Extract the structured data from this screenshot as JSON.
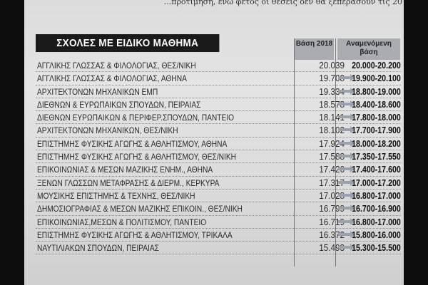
{
  "top_text": "...προτίμηση, ενώ φέτος οι θέσεις δεν θα ξεπεράσουν τις 20",
  "table": {
    "title": "ΣΧΟΛΕΣ ΜΕ ΕΙΔΙΚΟ ΜΑΘΗΜΑ",
    "col_base": "Βάση 2018",
    "col_expected": "Αναμενόμενη βάση",
    "arrow_icon": "arrow-right-icon",
    "rows": [
      {
        "name": "ΑΓΓΛΙΚΗΣ ΓΛΩΣΣΑΣ & ΦΙΛΟΛΟΓΙΑΣ, ΘΕΣ/ΝΙΚΗ",
        "base": "20.039",
        "expected": "20.000-20.200",
        "arrow": false
      },
      {
        "name": "ΑΓΓΛΙΚΗΣ ΓΛΩΣΣΑΣ & ΦΙΛΟΛΟΓΙΑΣ, ΑΘΗΝΑ",
        "base": "19.708",
        "expected": "19.900-20.100",
        "arrow": true
      },
      {
        "name": "ΑΡΧΙΤΕΚΤΟΝΩΝ ΜΗΧΑΝΙΚΩΝ ΕΜΠ",
        "base": "19.334",
        "expected": "18.800-19.000",
        "arrow": true
      },
      {
        "name": "ΔΙΕΘΝΩΝ & ΕΥΡΩΠΑΙΚΩΝ ΣΠΟΥΔΩΝ, ΠΕΙΡΑΙΑΣ",
        "base": "18.578",
        "expected": "18.400-18.600",
        "arrow": true
      },
      {
        "name": "ΔΙΕΘΝΩΝ ΕΥΡΩΠΑΙΚΩΝ & ΠΕΡΙΦΕΡ.ΣΠΟΥΔΩΝ, ΠΑΝΤΕΙΟ",
        "base": "18.141",
        "expected": "17.800-18.000",
        "arrow": true
      },
      {
        "name": "ΑΡΧΙΤΕΚΤΟΝΩΝ ΜΗΧΑΝΙΚΩΝ, ΘΕΣ/ΝΙΚΗ",
        "base": "18.102",
        "expected": "17.700-17.900",
        "arrow": true
      },
      {
        "name": "ΕΠΙΣΤΗΜΗΣ ΦΥΣΙΚΗΣ ΑΓΩΓΗΣ & ΑΘΛΗΤΙΣΜΟΥ, ΑΘΗΝΑ",
        "base": "17.924",
        "expected": "18.000-18.200",
        "arrow": true
      },
      {
        "name": "ΕΠΙΣΤΗΜΗΣ ΦΥΣΙΚΗΣ ΑΓΩΓΗΣ & ΑΘΛΗΤΙΣΜΟΥ, ΘΕΣ/ΝΙΚΗ",
        "base": "17.588",
        "expected": "17.350-17.550",
        "arrow": true
      },
      {
        "name": "ΕΠΙΚΟΙΝΩΝΙΑΣ & ΜΕΣΩΝ ΜΑΖΙΚΗΣ ΕΝΗΜ., ΑΘΗΝΑ",
        "base": "17.426",
        "expected": "17.400-17.600",
        "arrow": true
      },
      {
        "name": "ΞΕΝΩΝ ΓΛΩΣΣΩΝ ΜΕΤΑΦΡΑΣΗΣ & ΔΙΕΡΜ., ΚΕΡΚΥΡΑ",
        "base": "17.317",
        "expected": "17.000-17.200",
        "arrow": true
      },
      {
        "name": "ΜΟΥΣΙΚΗΣ ΕΠΙΣΤΗΜΗΣ & ΤΕΧΝΗΣ, ΘΕΣ/ΝΙΚΗ",
        "base": "17.028",
        "expected": "16.800-17.000",
        "arrow": true
      },
      {
        "name": "ΔΗΜΟΣΙΟΓΡΑΦΙΑΣ & ΜΕΣΩΝ ΜΑΖΙΚΗΣ ΕΠΙΚΟΙΝ., ΘΕΣ/ΝΙΚΗ",
        "base": "16.799",
        "expected": "16.700-16.900",
        "arrow": true
      },
      {
        "name": "ΕΠΙΚΟΙΝΩΝΙΑΣ,ΜΕΣΩΝ & ΠΟΛΙΤΙΣΜΟΥ, ΠΑΝΤΕΙΟ",
        "base": "16.719",
        "expected": "16.800-17.000",
        "arrow": true
      },
      {
        "name": "ΕΠΙΣΤΗΜΗΣ ΦΥΣΙΚΗΣ ΑΓΩΓΗΣ & ΑΘΛΗΤΙΣΜΟΥ, ΤΡΙΚΑΛΑ",
        "base": "16.372",
        "expected": "15.800-16.000",
        "arrow": true
      },
      {
        "name": "ΝΑΥΤΙΛΙΑΚΩΝ ΣΠΟΥΔΩΝ, ΠΕΙΡΑΙΑΣ",
        "base": "15.493",
        "expected": "15.300-15.500",
        "arrow": true
      }
    ]
  }
}
